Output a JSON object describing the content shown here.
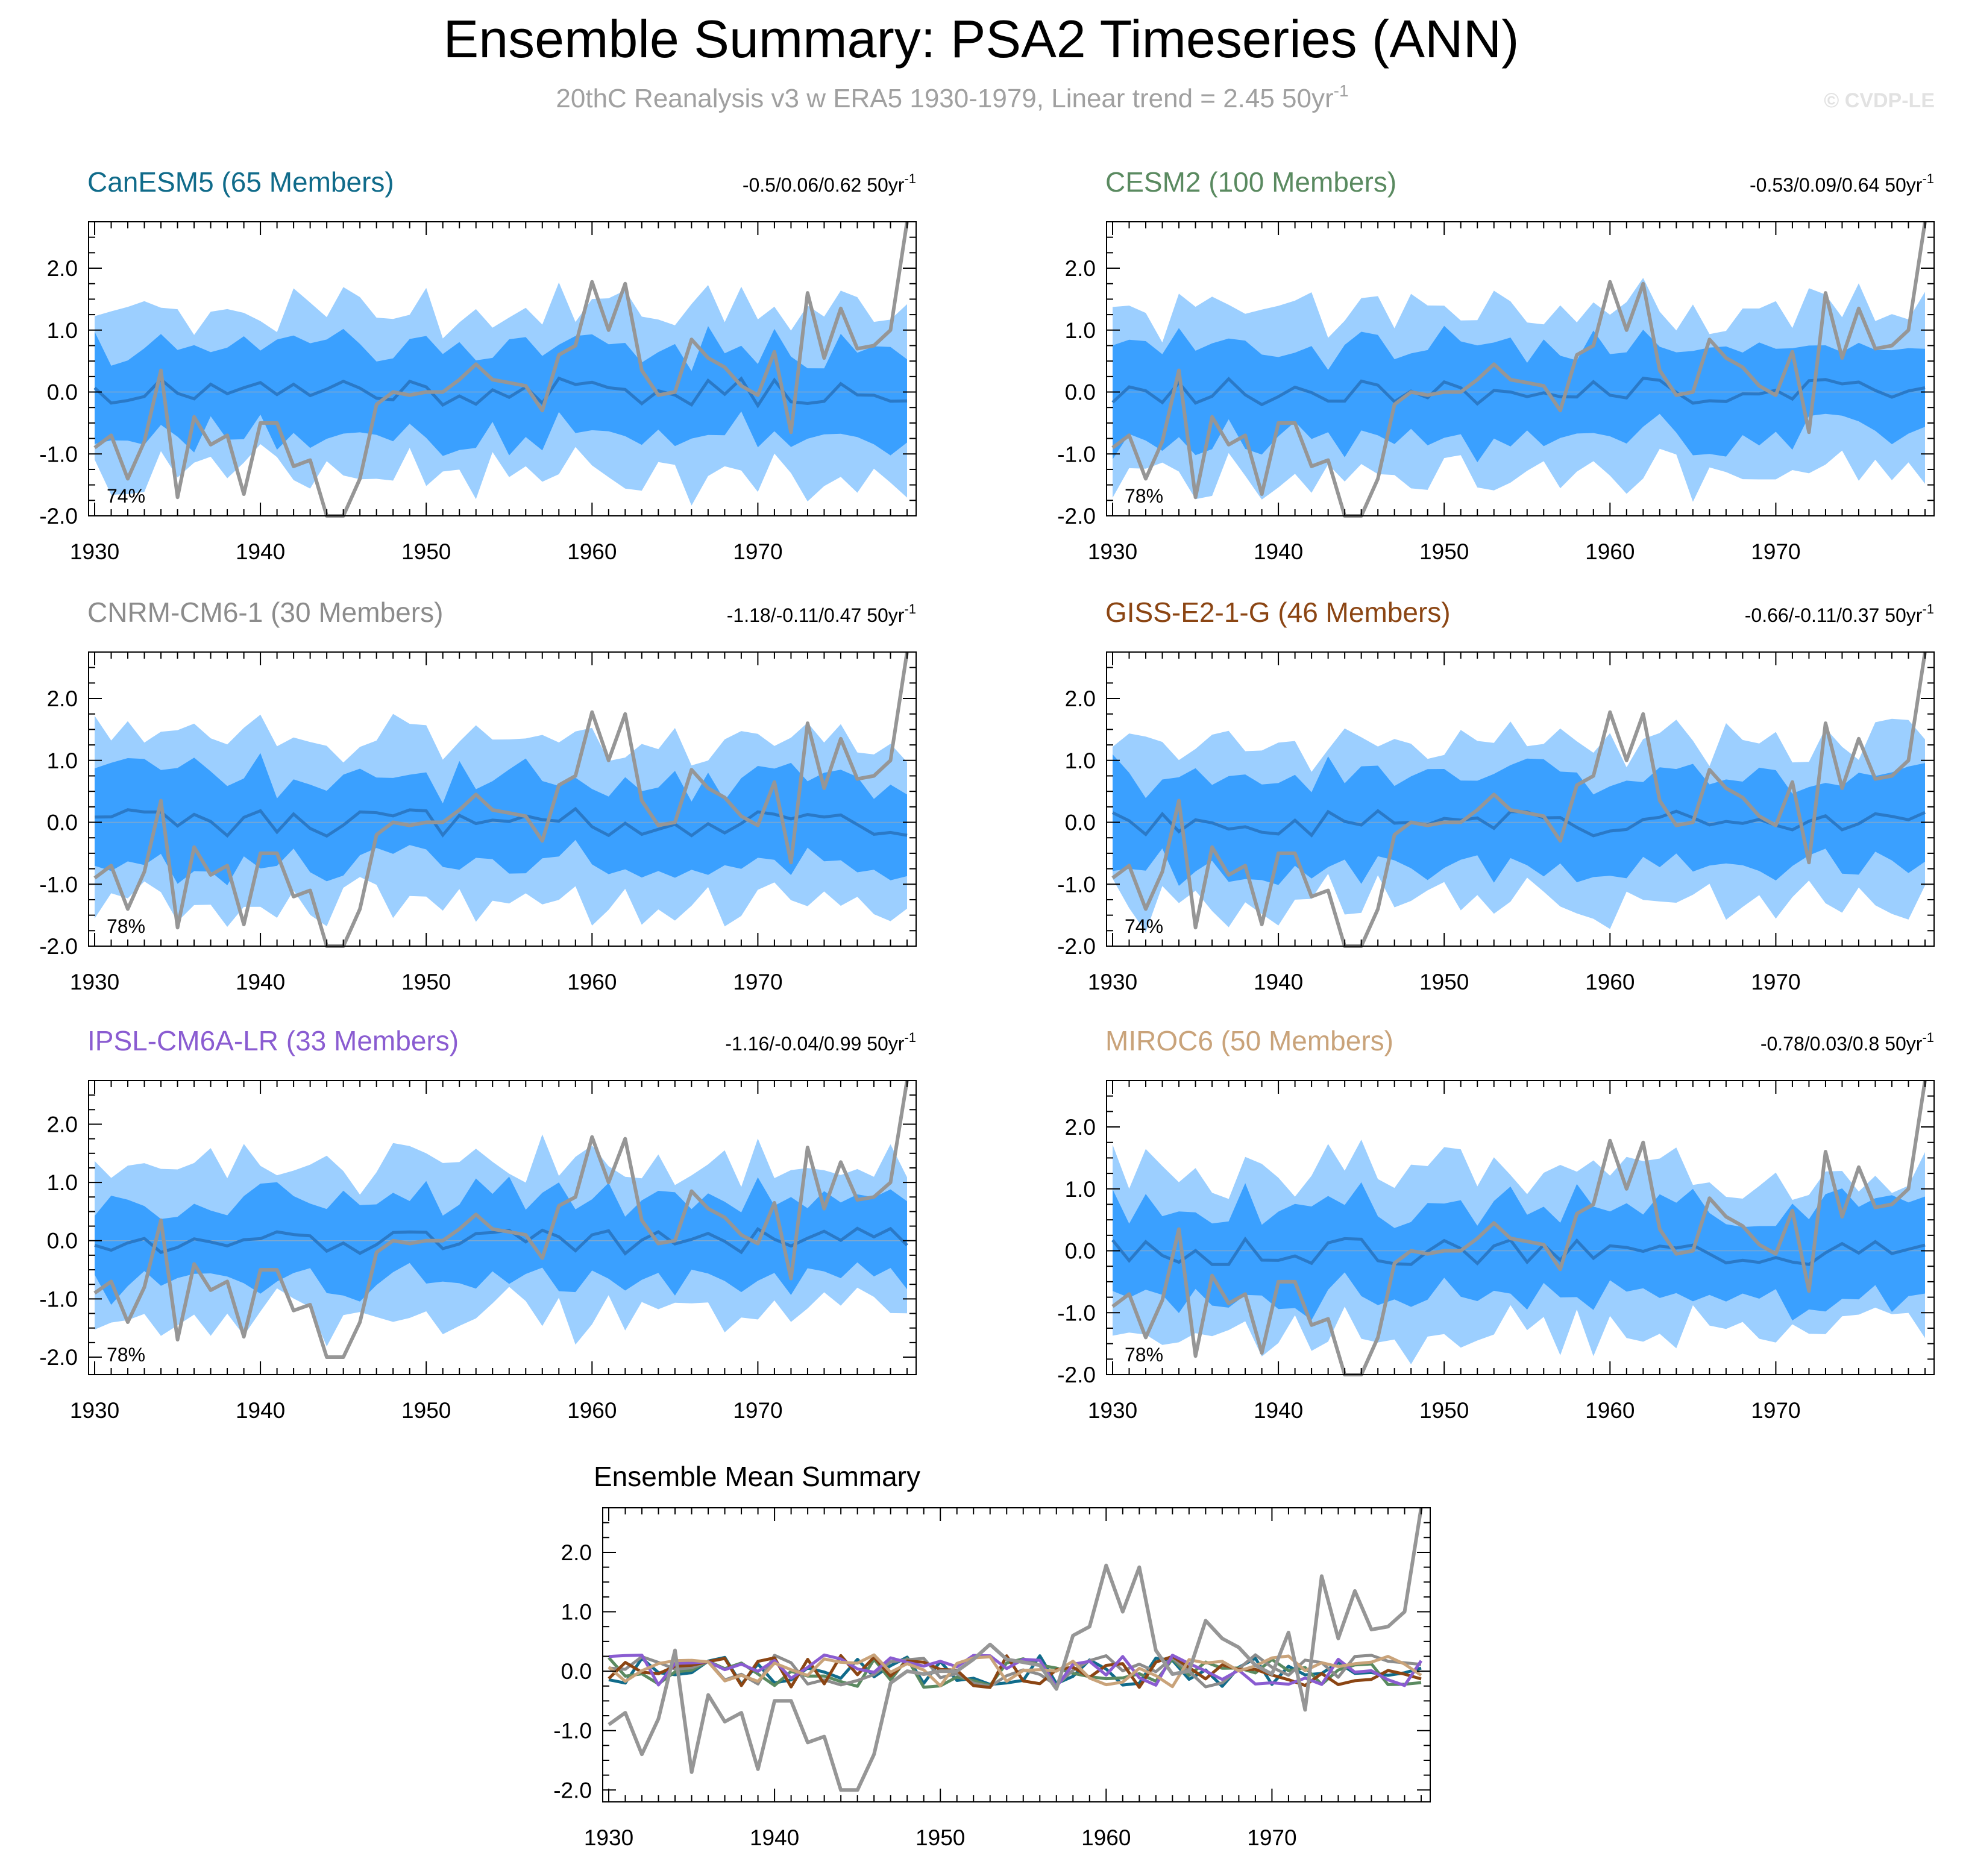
{
  "header": {
    "title": "Ensemble Summary: PSA2 Timeseries (ANN)",
    "subtitle_main": "20thC Reanalysis v3 w ERA5 1930-1979, Linear trend = 2.45 50yr",
    "subtitle_sup": "-1",
    "credit": "© CVDP-LE"
  },
  "colors": {
    "outer_band": "#9ccfff",
    "inner_band": "#3aa0ff",
    "ensemble_mean": "#2a79c7",
    "observations": "#969696",
    "axis": "#000000"
  },
  "chart_data": [
    {
      "type": "area",
      "model": "CanESM5",
      "title": "CanESM5 (65 Members)",
      "title_color": "#106b8a",
      "trend_text": "-0.5/0.06/0.62 50yr",
      "trend_sup": "-1",
      "percent_label": "74%",
      "x_start": 1930,
      "x_end": 1979,
      "xticks": [
        1930,
        1940,
        1950,
        1960,
        1970
      ],
      "yticks": [
        -2.0,
        -1.0,
        0.0,
        1.0,
        2.0
      ],
      "ylim": [
        -2.0,
        2.75
      ],
      "seed": 11
    },
    {
      "type": "area",
      "model": "CESM2",
      "title": "CESM2 (100 Members)",
      "title_color": "#5a8a60",
      "trend_text": "-0.53/0.09/0.64 50yr",
      "trend_sup": "-1",
      "percent_label": "78%",
      "x_start": 1930,
      "x_end": 1979,
      "xticks": [
        1930,
        1940,
        1950,
        1960,
        1970
      ],
      "yticks": [
        -2.0,
        -1.0,
        0.0,
        1.0,
        2.0
      ],
      "ylim": [
        -2.0,
        2.75
      ],
      "seed": 23
    },
    {
      "type": "area",
      "model": "CNRM-CM6-1",
      "title": "CNRM-CM6-1 (30 Members)",
      "title_color": "#8c8c8c",
      "trend_text": "-1.18/-0.11/0.47 50yr",
      "trend_sup": "-1",
      "percent_label": "78%",
      "x_start": 1930,
      "x_end": 1979,
      "xticks": [
        1930,
        1940,
        1950,
        1960,
        1970
      ],
      "yticks": [
        -2.0,
        -1.0,
        0.0,
        1.0,
        2.0
      ],
      "ylim": [
        -2.0,
        2.75
      ],
      "seed": 37
    },
    {
      "type": "area",
      "model": "GISS-E2-1-G",
      "title": "GISS-E2-1-G (46 Members)",
      "title_color": "#8b4513",
      "trend_text": "-0.66/-0.11/0.37 50yr",
      "trend_sup": "-1",
      "percent_label": "74%",
      "x_start": 1930,
      "x_end": 1979,
      "xticks": [
        1930,
        1940,
        1950,
        1960,
        1970
      ],
      "yticks": [
        -2.0,
        -1.0,
        0.0,
        1.0,
        2.0
      ],
      "ylim": [
        -2.0,
        2.75
      ],
      "seed": 41
    },
    {
      "type": "area",
      "model": "IPSL-CM6A-LR",
      "title": "IPSL-CM6A-LR (33 Members)",
      "title_color": "#8a5cd1",
      "trend_text": "-1.16/-0.04/0.99 50yr",
      "trend_sup": "-1",
      "percent_label": "78%",
      "x_start": 1930,
      "x_end": 1979,
      "xticks": [
        1930,
        1940,
        1950,
        1960,
        1970
      ],
      "yticks": [
        -2.0,
        -1.0,
        0.0,
        1.0,
        2.0
      ],
      "ylim": [
        -2.3,
        2.75
      ],
      "seed": 53
    },
    {
      "type": "area",
      "model": "MIROC6",
      "title": "MIROC6 (50 Members)",
      "title_color": "#c9a37a",
      "trend_text": "-0.78/0.03/0.8 50yr",
      "trend_sup": "-1",
      "percent_label": "78%",
      "x_start": 1930,
      "x_end": 1979,
      "xticks": [
        1930,
        1940,
        1950,
        1960,
        1970
      ],
      "yticks": [
        -2.0,
        -1.0,
        0.0,
        1.0,
        2.0
      ],
      "ylim": [
        -2.0,
        2.75
      ],
      "seed": 67
    },
    {
      "type": "line",
      "title": "Ensemble Mean Summary",
      "x_start": 1930,
      "x_end": 1979,
      "xticks": [
        1930,
        1940,
        1950,
        1960,
        1970
      ],
      "yticks": [
        -2.0,
        -1.0,
        0.0,
        1.0,
        2.0
      ],
      "ylim": [
        -2.2,
        2.75
      ],
      "series_colors": [
        "#106b8a",
        "#5a8a60",
        "#8c8c8c",
        "#8b4513",
        "#8a5cd1",
        "#c9a37a"
      ]
    }
  ],
  "observations": {
    "name": "20thC Reanalysis v3 w ERA5",
    "years": [
      1930,
      1931,
      1932,
      1933,
      1934,
      1935,
      1936,
      1937,
      1938,
      1939,
      1940,
      1941,
      1942,
      1943,
      1944,
      1945,
      1946,
      1947,
      1948,
      1949,
      1950,
      1951,
      1952,
      1953,
      1954,
      1955,
      1956,
      1957,
      1958,
      1959,
      1960,
      1961,
      1962,
      1963,
      1964,
      1965,
      1966,
      1967,
      1968,
      1969,
      1970,
      1971,
      1972,
      1973,
      1974,
      1975,
      1976,
      1977,
      1978,
      1979
    ],
    "values": [
      -0.9,
      -0.7,
      -1.4,
      -0.8,
      0.35,
      -1.7,
      -0.4,
      -0.85,
      -0.7,
      -1.65,
      -0.5,
      -0.5,
      -1.2,
      -1.1,
      -2.0,
      -2.0,
      -1.4,
      -0.2,
      0.0,
      -0.05,
      0.0,
      0.0,
      0.2,
      0.45,
      0.2,
      0.15,
      0.1,
      -0.3,
      0.6,
      0.75,
      1.78,
      1.0,
      1.75,
      0.35,
      -0.05,
      0.0,
      0.85,
      0.55,
      0.4,
      0.1,
      -0.05,
      0.65,
      -0.65,
      1.6,
      0.55,
      1.35,
      0.7,
      0.75,
      1.0,
      2.75
    ]
  }
}
